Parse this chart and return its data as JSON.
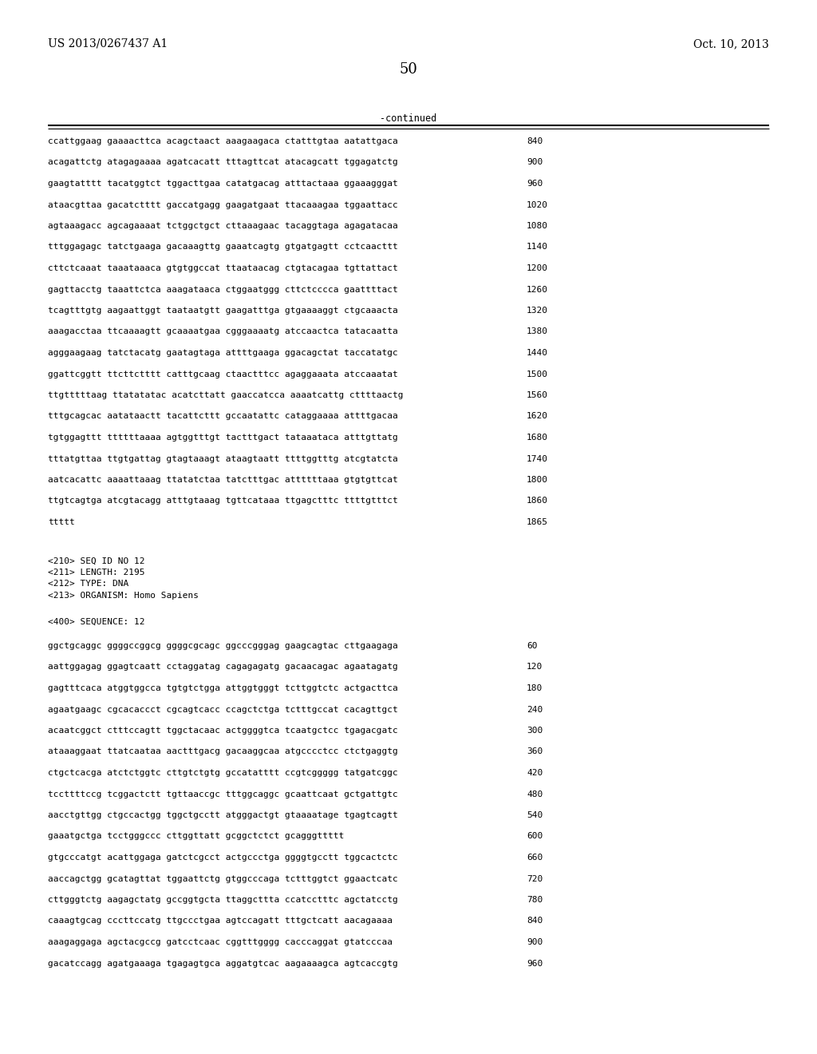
{
  "header_left": "US 2013/0267437 A1",
  "header_right": "Oct. 10, 2013",
  "page_number": "50",
  "continued_label": "-continued",
  "background_color": "#ffffff",
  "text_color": "#000000",
  "font_size_header": 10.0,
  "font_size_body": 8.2,
  "font_size_page": 13.0,
  "sequence_lines_top": [
    [
      "ccattggaag gaaaacttca acagctaact aaagaagaca ctatttgtaa aatattgaca",
      "840"
    ],
    [
      "acagattctg atagagaaaa agatcacatt tttagttcat atacagcatt tggagatctg",
      "900"
    ],
    [
      "gaagtatttt tacatggtct tggacttgaa catatgacag atttactaaa ggaaagggat",
      "960"
    ],
    [
      "ataacgttaa gacatctttt gaccatgagg gaagatgaat ttacaaagaa tggaattacc",
      "1020"
    ],
    [
      "agtaaagacc agcagaaaat tctggctgct cttaaagaac tacaggtaga agagatacaa",
      "1080"
    ],
    [
      "tttggagagc tatctgaaga gacaaagttg gaaatcagtg gtgatgagtt cctcaacttt",
      "1140"
    ],
    [
      "cttctcaaat taaataaaca gtgtggccat ttaataacag ctgtacagaa tgttattact",
      "1200"
    ],
    [
      "gagttacctg taaattctca aaagataaca ctggaatggg cttctcccca gaattttact",
      "1260"
    ],
    [
      "tcagtttgtg aagaattggt taataatgtt gaagatttga gtgaaaaggt ctgcaaacta",
      "1320"
    ],
    [
      "aaagacctaa ttcaaaagtt gcaaaatgaa cgggaaaatg atccaactca tatacaatta",
      "1380"
    ],
    [
      "agggaagaag tatctacatg gaatagtaga attttgaaga ggacagctat taccatatgc",
      "1440"
    ],
    [
      "ggattcggtt ttcttctttt catttgcaag ctaactttcc agaggaaata atccaaatat",
      "1500"
    ],
    [
      "ttgtttttaag ttatatatac acatcttatt gaaccatcca aaaatcattg cttttaactg",
      "1560"
    ],
    [
      "tttgcagcac aatataactt tacattcttt gccaatattc cataggaaaa attttgacaa",
      "1620"
    ],
    [
      "tgtggagttt ttttttaaaa agtggtttgt tactttgact tataaataca atttgttatg",
      "1680"
    ],
    [
      "tttatgttaa ttgtgattag gtagtaaagt ataagtaatt ttttggtttg atcgtatcta",
      "1740"
    ],
    [
      "aatcacattc aaaattaaag ttatatctaa tatctttgac attttttaaa gtgtgttcat",
      "1800"
    ],
    [
      "ttgtcagtga atcgtacagg atttgtaaag tgttcataaa ttgagctttc ttttgtttct",
      "1860"
    ],
    [
      "ttttt",
      "1865"
    ]
  ],
  "metadata_lines": [
    "<210> SEQ ID NO 12",
    "<211> LENGTH: 2195",
    "<212> TYPE: DNA",
    "<213> ORGANISM: Homo Sapiens"
  ],
  "sequence_label": "<400> SEQUENCE: 12",
  "sequence_lines_bottom": [
    [
      "ggctgcaggc ggggccggcg ggggcgcagc ggcccgggag gaagcagtac cttgaagaga",
      "60"
    ],
    [
      "aattggagag ggagtcaatt cctaggatag cagagagatg gacaacagac agaatagatg",
      "120"
    ],
    [
      "gagtttcaca atggtggcca tgtgtctgga attggtgggt tcttggtctc actgacttca",
      "180"
    ],
    [
      "agaatgaagc cgcacaccct cgcagtcacc ccagctctga tctttgccat cacagttgct",
      "240"
    ],
    [
      "acaatcggct ctttccagtt tggctacaac actggggtca tcaatgctcc tgagacgatc",
      "300"
    ],
    [
      "ataaaggaat ttatcaataa aactttgacg gacaaggcaa atgcccctcc ctctgaggtg",
      "360"
    ],
    [
      "ctgctcacga atctctggtc cttgtctgtg gccatatttt ccgtcggggg tatgatcggc",
      "420"
    ],
    [
      "tccttttccg tcggactctt tgttaaccgc tttggcaggc gcaattcaat gctgattgtc",
      "480"
    ],
    [
      "aacctgttgg ctgccactgg tggctgcctt atgggactgt gtaaaatage tgagtcagtt",
      "540"
    ],
    [
      "gaaatgctga tcctgggccc cttggttatt gcggctctct gcagggttttt",
      "600"
    ],
    [
      "gtgcccatgt acattggaga gatctcgcct actgccctga ggggtgcctt tggcactctc",
      "660"
    ],
    [
      "aaccagctgg gcatagttat tggaattctg gtggcccaga tctttggtct ggaactcatc",
      "720"
    ],
    [
      "cttgggtctg aagagctatg gccggtgcta ttaggcttta ccatcctttc agctatcctg",
      "780"
    ],
    [
      "caaagtgcag cccttccatg ttgccctgaa agtccagatt tttgctcatt aacagaaaa",
      "840"
    ],
    [
      "aaagaggaga agctacgccg gatcctcaac cggtttgggg cacccaggat gtatcccaa",
      "900"
    ],
    [
      "gacatccagg agatgaaaga tgagagtgca aggatgtcac aagaaaagca agtcaccgtg",
      "960"
    ]
  ]
}
